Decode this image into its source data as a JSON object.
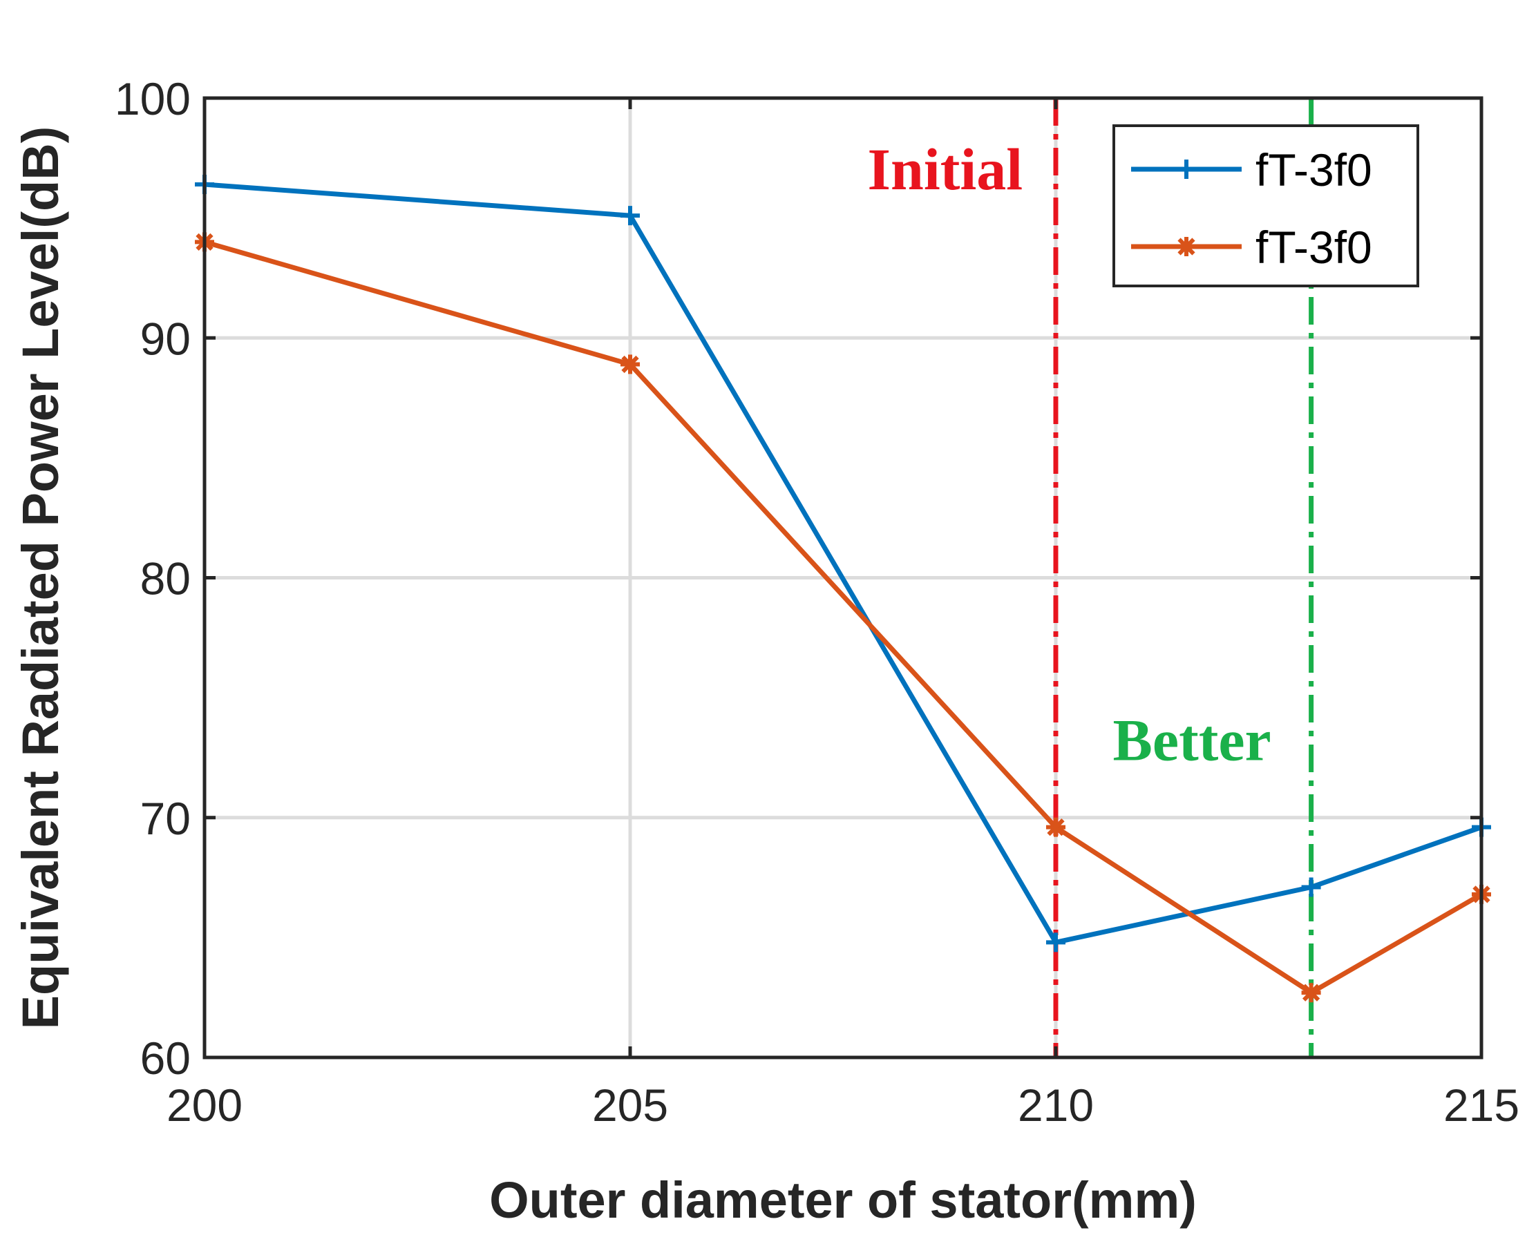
{
  "chart_data": {
    "type": "line",
    "title": "",
    "xlabel": "Outer diameter of stator(mm)",
    "ylabel": "Equivalent Radiated Power Level(dB)",
    "xlim": [
      200,
      215
    ],
    "ylim": [
      60,
      100
    ],
    "xticks": [
      200,
      205,
      210,
      215
    ],
    "yticks": [
      60,
      70,
      80,
      90,
      100
    ],
    "x_tick_labels": [
      "200",
      "205",
      "210",
      "215"
    ],
    "y_tick_labels": [
      "60",
      "70",
      "80",
      "90",
      "100"
    ],
    "grid": true,
    "legend_position": "top-right",
    "series": [
      {
        "name": "fT-3f0",
        "color": "#0072BD",
        "marker": "plus",
        "x": [
          200,
          205,
          210,
          213,
          215
        ],
        "y": [
          96.4,
          95.1,
          64.8,
          67.1,
          69.6
        ]
      },
      {
        "name": "fT-3f0",
        "color": "#D95319",
        "marker": "asterisk",
        "x": [
          200,
          205,
          210,
          213,
          215
        ],
        "y": [
          94.0,
          88.9,
          69.6,
          62.7,
          66.8
        ]
      }
    ],
    "vertical_lines": [
      {
        "x": 210,
        "color": "#E8141E",
        "style": "dash-dot"
      },
      {
        "x": 213,
        "color": "#1AB04A",
        "style": "dash-dot"
      }
    ],
    "annotations": [
      {
        "text": "Initial",
        "color": "#E8141E",
        "x": 208.7,
        "y": 96.2
      },
      {
        "text": "Better",
        "color": "#1AB04A",
        "x": 211.6,
        "y": 72.4
      }
    ]
  }
}
